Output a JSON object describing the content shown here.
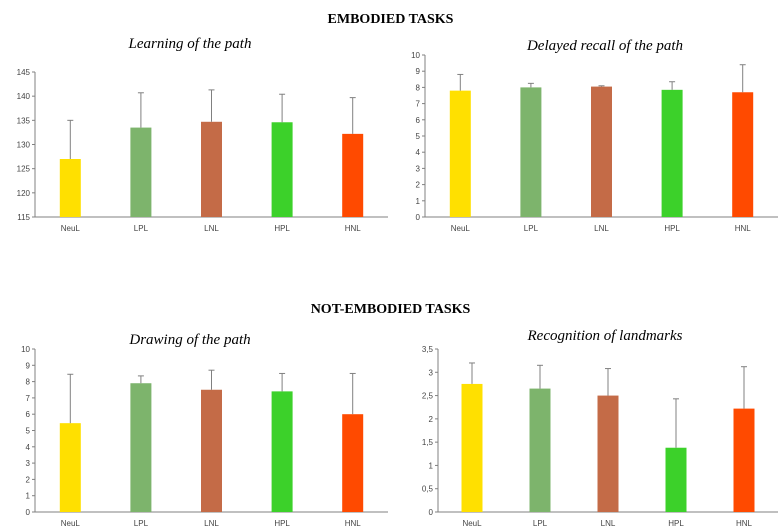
{
  "sections": {
    "embodied": "EMBODIED TASKS",
    "not_embodied": "NOT-EMBODIED TASKS"
  },
  "colors": {
    "NeuL": "#FFE000",
    "LPL": "#7DB46C",
    "LNL": "#C46B47",
    "HPL": "#3CD12A",
    "HNL": "#FF4A00",
    "axis": "#808080",
    "error_bar": "#808080"
  },
  "chart_data": [
    {
      "type": "bar",
      "title": "Learning of the path",
      "categories": [
        "NeuL",
        "LPL",
        "LNL",
        "HPL",
        "HNL"
      ],
      "values": [
        127,
        133.5,
        134.7,
        134.6,
        132.2
      ],
      "errors": [
        8,
        7.2,
        6.6,
        5.8,
        7.5
      ],
      "ylim": [
        115,
        145
      ],
      "yticks": [
        115,
        120,
        125,
        130,
        135,
        140,
        145
      ],
      "ytick_labels": [
        "115",
        "120",
        "125",
        "130",
        "135",
        "140",
        "145"
      ],
      "grid": false
    },
    {
      "type": "bar",
      "title": "Delayed recall of the path",
      "categories": [
        "NeuL",
        "LPL",
        "LNL",
        "HPL",
        "HNL"
      ],
      "values": [
        7.8,
        8.0,
        8.05,
        7.85,
        7.7
      ],
      "errors": [
        1.0,
        0.25,
        0.05,
        0.5,
        1.7
      ],
      "ylim": [
        0,
        10
      ],
      "yticks": [
        0,
        1,
        2,
        3,
        4,
        5,
        6,
        7,
        8,
        9,
        10
      ],
      "ytick_labels": [
        "0",
        "1",
        "2",
        "3",
        "4",
        "5",
        "6",
        "7",
        "8",
        "9",
        "10"
      ],
      "grid": false
    },
    {
      "type": "bar",
      "title": "Drawing of the path",
      "categories": [
        "NeuL",
        "LPL",
        "LNL",
        "HPL",
        "HNL"
      ],
      "values": [
        5.45,
        7.9,
        7.5,
        7.4,
        6.0
      ],
      "errors": [
        3.0,
        0.45,
        1.2,
        1.1,
        2.5
      ],
      "ylim": [
        0,
        10
      ],
      "yticks": [
        0,
        1,
        2,
        3,
        4,
        5,
        6,
        7,
        8,
        9,
        10
      ],
      "ytick_labels": [
        "0",
        "1",
        "2",
        "3",
        "4",
        "5",
        "6",
        "7",
        "8",
        "9",
        "10"
      ],
      "grid": false
    },
    {
      "type": "bar",
      "title": "Recognition of landmarks",
      "categories": [
        "NeuL",
        "LPL",
        "LNL",
        "HPL",
        "HNL"
      ],
      "values": [
        2.75,
        2.65,
        2.5,
        1.38,
        2.22
      ],
      "errors": [
        0.45,
        0.5,
        0.58,
        1.05,
        0.9
      ],
      "ylim": [
        0,
        3.5
      ],
      "yticks": [
        0,
        0.5,
        1,
        1.5,
        2,
        2.5,
        3,
        3.5
      ],
      "ytick_labels": [
        "0",
        "0,5",
        "1",
        "1,5",
        "2",
        "2,5",
        "3",
        "3,5"
      ],
      "grid": false
    }
  ]
}
